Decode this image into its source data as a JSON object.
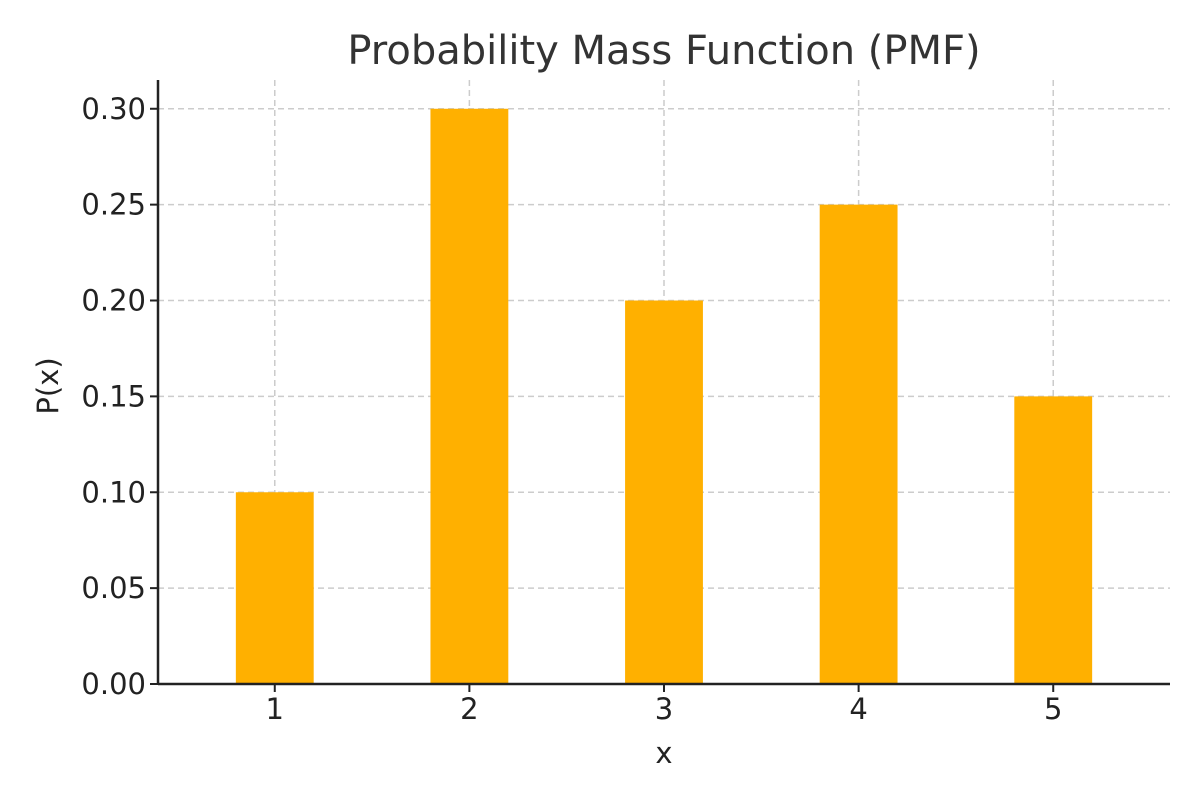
{
  "chart_data": {
    "type": "bar",
    "title": "Probability Mass Function (PMF)",
    "xlabel": "x",
    "ylabel": "P(x)",
    "categories": [
      "1",
      "2",
      "3",
      "4",
      "5"
    ],
    "values": [
      0.1,
      0.3,
      0.2,
      0.25,
      0.15
    ],
    "ylim": [
      0,
      0.315
    ],
    "yticks": [
      "0.00",
      "0.05",
      "0.10",
      "0.15",
      "0.20",
      "0.25",
      "0.30"
    ],
    "grid": true,
    "bar_color": "#FFB000"
  }
}
